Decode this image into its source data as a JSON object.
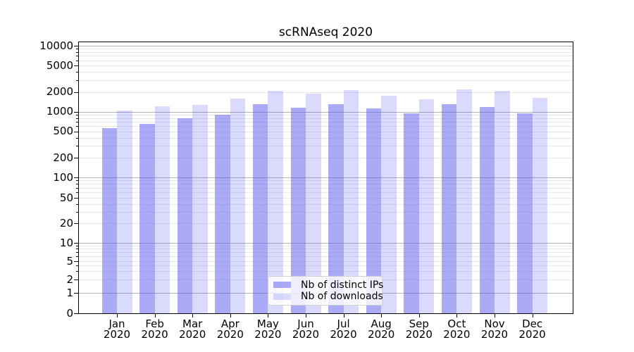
{
  "title": "scRNAseq 2020",
  "chart_data": {
    "type": "bar",
    "title": "scRNAseq 2020",
    "categories": [
      "Jan 2020",
      "Feb 2020",
      "Mar 2020",
      "Apr 2020",
      "May 2020",
      "Jun 2020",
      "Jul 2020",
      "Aug 2020",
      "Sep 2020",
      "Oct 2020",
      "Nov 2020",
      "Dec 2020"
    ],
    "series": [
      {
        "name": "Nb of distinct IPs",
        "color": "rgba(85,85,240,0.5)",
        "values": [
          560,
          650,
          800,
          890,
          1300,
          1150,
          1300,
          1120,
          940,
          1300,
          1170,
          950
        ]
      },
      {
        "name": "Nb of downloads",
        "color": "rgba(85,85,240,0.22)",
        "values": [
          1040,
          1200,
          1250,
          1600,
          2100,
          1890,
          2130,
          1740,
          1540,
          2190,
          2080,
          1640
        ]
      }
    ],
    "yaxis": {
      "scale": "symlog",
      "ticks": [
        0,
        1,
        2,
        5,
        10,
        20,
        50,
        100,
        200,
        500,
        1000,
        2000,
        5000,
        10000
      ],
      "range": [
        0,
        10000
      ]
    },
    "xlabel": "",
    "ylabel": "",
    "grid": "horizontal",
    "legend": {
      "position": "lower-center"
    }
  },
  "colors": {
    "bar_base": "#5555f0",
    "grid_minor": "#e8e8e8",
    "grid_major_decade": "#b3b3b3",
    "spine": "#000000"
  }
}
